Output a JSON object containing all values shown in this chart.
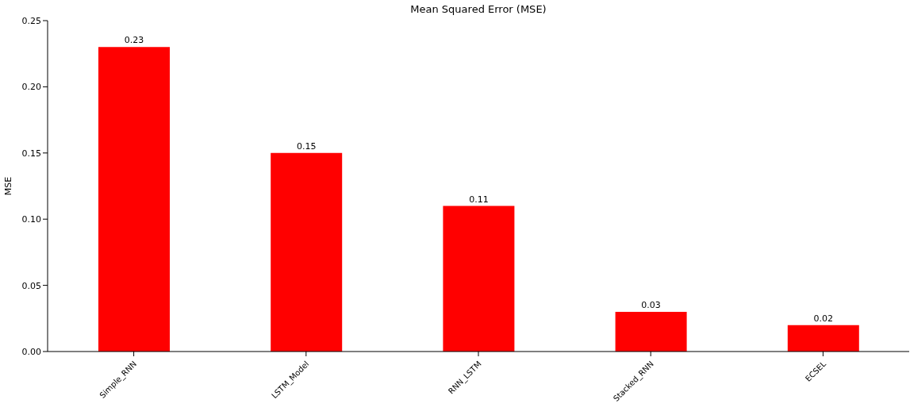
{
  "chart_data": {
    "type": "bar",
    "title": "Mean Squared Error (MSE)",
    "ylabel": "MSE",
    "categories": [
      "Simple_RNN",
      "LSTM_Model",
      "RNN_LSTM",
      "Stacked_RNN",
      "ECSEL"
    ],
    "values": [
      0.23,
      0.15,
      0.11,
      0.03,
      0.02
    ],
    "color": "#ff0000",
    "ylim": [
      0,
      0.25
    ],
    "yticks": [
      {
        "value": 0,
        "label": "0.00"
      },
      {
        "value": 0.05,
        "label": "0.05"
      },
      {
        "value": 0.1,
        "label": "0.10"
      },
      {
        "value": 0.15,
        "label": "0.15"
      },
      {
        "value": 0.2,
        "label": "0.20"
      },
      {
        "value": 0.25,
        "label": "0.25"
      }
    ],
    "data_labels": true,
    "grid": false,
    "legend": false
  }
}
